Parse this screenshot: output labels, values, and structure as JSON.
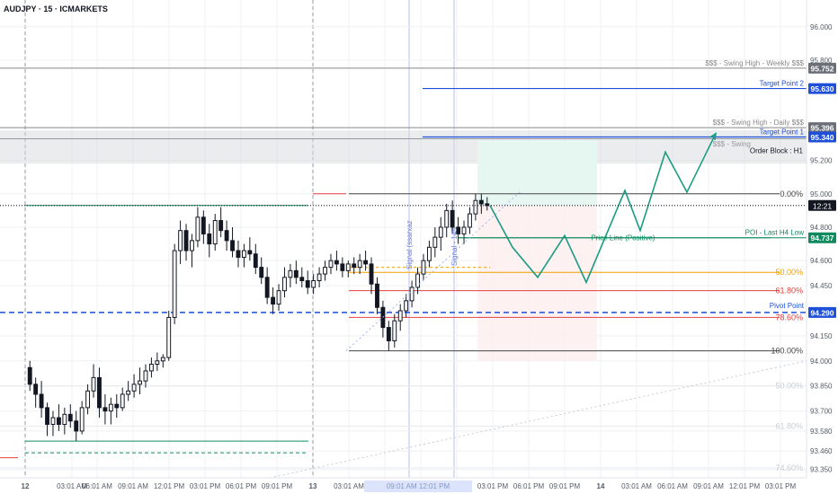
{
  "header": {
    "symbol_label": "AUDJPY · 15 · ICMARKETS"
  },
  "chart_data": {
    "type": "candlestick",
    "symbol": "AUDJPY",
    "timeframe": "15",
    "broker": "ICMARKETS",
    "ylim": [
      93.3,
      96.16
    ],
    "price_ticks": [
      "96.000",
      "95.800",
      "95.200",
      "95.000",
      "94.800",
      "94.600",
      "94.450",
      "94.150",
      "94.000",
      "93.850",
      "93.700",
      "93.580",
      "93.460",
      "93.350"
    ],
    "time_ticks": [
      "12",
      "03:01 AM",
      "06:01 AM",
      "09:01 AM",
      "12:01 PM",
      "03:01 PM",
      "06:01 PM",
      "09:01 PM",
      "13",
      "03:01 AM",
      "06:01 AM",
      "09:01 AM",
      "12:01 PM",
      "03:01 PM",
      "06:01 PM",
      "09:01 PM",
      "14",
      "03:01 AM",
      "06:01 AM",
      "09:01 AM",
      "12:01 PM",
      "03:01 PM"
    ],
    "current_price": {
      "value": "94.920",
      "countdown": "12:21"
    },
    "levels": [
      {
        "name": "swing-high-weekly",
        "label": "$$$ - Swing High - Weekly $$$",
        "price": 95.752,
        "tag": "95.752",
        "color": "#888888"
      },
      {
        "name": "target-point-2",
        "label": "Target Point 2",
        "price": 95.63,
        "tag": "95.630",
        "color": "#1e4fd8"
      },
      {
        "name": "swing-high-daily",
        "label": "$$$ - Swing High - Daily $$$",
        "price": 95.396,
        "tag": "95.396",
        "color": "#888888"
      },
      {
        "name": "target-point-1",
        "label": "Target Point 1",
        "price": 95.34,
        "tag": "95.340",
        "color": "#1e4fd8"
      },
      {
        "name": "poi-last-h4-low",
        "label": "POI - Last H4 Low",
        "price": 94.737,
        "tag": "94.737",
        "color": "#0f8a5f"
      },
      {
        "name": "pivot-point",
        "label": "Pivot Point",
        "price": 94.29,
        "tag": "94.290",
        "color": "#1e4fd8"
      }
    ],
    "fib_levels": [
      {
        "label": "0.00%",
        "price": 95.0,
        "color": "#444444"
      },
      {
        "label": "50.00%",
        "price": 94.53,
        "color": "#f0a000"
      },
      {
        "label": "61.80%",
        "price": 94.42,
        "color": "#e04040"
      },
      {
        "label": "78.60%",
        "price": 94.26,
        "color": "#e04040"
      },
      {
        "label": "100.00%",
        "price": 94.06,
        "color": "#444444"
      }
    ],
    "fib_ghost_levels": [
      {
        "label": "50.00%",
        "price": 93.85
      },
      {
        "label": "61.80%",
        "price": 93.61
      },
      {
        "label": "74.60%",
        "price": 93.36
      }
    ],
    "annotations": {
      "order_block": "Order Block : H1",
      "swing_high_daily_faded": "$$$ - Swing",
      "price_line": "Price Line (Positive)",
      "signal_1": "Signal (ssarxaz",
      "signal_2": "Signal - 145",
      "time_badge": "09:01 AM  12:01 PM"
    },
    "projection": [
      [
        94.93,
        94.68
      ],
      [
        94.82,
        94.55
      ],
      [
        94.72,
        94.5
      ],
      [
        94.92,
        95.02
      ],
      [
        94.8,
        95.25
      ],
      [
        95.03,
        95.36
      ]
    ],
    "candles": [
      [
        93.96,
        94.0,
        93.82,
        93.86
      ],
      [
        93.86,
        93.9,
        93.72,
        93.8
      ],
      [
        93.8,
        93.88,
        93.66,
        93.72
      ],
      [
        93.72,
        93.75,
        93.55,
        93.62
      ],
      [
        93.62,
        93.7,
        93.55,
        93.66
      ],
      [
        93.66,
        93.74,
        93.58,
        93.62
      ],
      [
        93.62,
        93.72,
        93.56,
        93.68
      ],
      [
        93.68,
        93.74,
        93.6,
        93.64
      ],
      [
        93.64,
        93.7,
        93.52,
        93.58
      ],
      [
        93.58,
        93.76,
        93.56,
        93.72
      ],
      [
        93.72,
        93.86,
        93.68,
        93.82
      ],
      [
        93.82,
        93.98,
        93.78,
        93.9
      ],
      [
        93.9,
        93.96,
        93.66,
        93.72
      ],
      [
        93.72,
        93.8,
        93.62,
        93.7
      ],
      [
        93.7,
        93.78,
        93.62,
        93.74
      ],
      [
        93.74,
        93.8,
        93.66,
        93.72
      ],
      [
        93.72,
        93.84,
        93.7,
        93.8
      ],
      [
        93.8,
        93.88,
        93.76,
        93.82
      ],
      [
        93.82,
        93.92,
        93.78,
        93.86
      ],
      [
        93.86,
        93.96,
        93.8,
        93.88
      ],
      [
        93.88,
        93.98,
        93.84,
        93.94
      ],
      [
        93.94,
        94.02,
        93.9,
        93.98
      ],
      [
        93.98,
        94.05,
        93.94,
        94.0
      ],
      [
        94.0,
        94.04,
        93.96,
        94.02
      ],
      [
        94.02,
        94.3,
        94.0,
        94.26
      ],
      [
        94.26,
        94.7,
        94.22,
        94.66
      ],
      [
        94.66,
        94.84,
        94.58,
        94.78
      ],
      [
        94.78,
        94.82,
        94.6,
        94.66
      ],
      [
        94.66,
        94.76,
        94.56,
        94.72
      ],
      [
        94.72,
        94.92,
        94.68,
        94.86
      ],
      [
        94.86,
        94.9,
        94.7,
        94.76
      ],
      [
        94.76,
        94.82,
        94.62,
        94.7
      ],
      [
        94.7,
        94.88,
        94.66,
        94.84
      ],
      [
        94.84,
        94.92,
        94.74,
        94.78
      ],
      [
        94.78,
        94.84,
        94.66,
        94.72
      ],
      [
        94.72,
        94.8,
        94.62,
        94.66
      ],
      [
        94.66,
        94.72,
        94.56,
        94.62
      ],
      [
        94.62,
        94.7,
        94.56,
        94.66
      ],
      [
        94.66,
        94.74,
        94.6,
        94.64
      ],
      [
        94.64,
        94.7,
        94.52,
        94.56
      ],
      [
        94.56,
        94.62,
        94.46,
        94.5
      ],
      [
        94.5,
        94.56,
        94.34,
        94.38
      ],
      [
        94.38,
        94.44,
        94.28,
        94.34
      ],
      [
        94.34,
        94.46,
        94.3,
        94.42
      ],
      [
        94.42,
        94.56,
        94.38,
        94.5
      ],
      [
        94.5,
        94.58,
        94.44,
        94.54
      ],
      [
        94.54,
        94.6,
        94.46,
        94.5
      ],
      [
        94.5,
        94.56,
        94.44,
        94.48
      ],
      [
        94.48,
        94.54,
        94.4,
        94.44
      ],
      [
        94.44,
        94.52,
        94.4,
        94.48
      ],
      [
        94.48,
        94.56,
        94.44,
        94.52
      ],
      [
        94.52,
        94.6,
        94.48,
        94.56
      ],
      [
        94.56,
        94.64,
        94.52,
        94.6
      ],
      [
        94.6,
        94.66,
        94.54,
        94.58
      ],
      [
        94.58,
        94.62,
        94.5,
        94.54
      ],
      [
        94.54,
        94.6,
        94.5,
        94.58
      ],
      [
        94.58,
        94.62,
        94.52,
        94.56
      ],
      [
        94.56,
        94.64,
        94.52,
        94.6
      ],
      [
        94.6,
        94.66,
        94.54,
        94.58
      ],
      [
        94.58,
        94.62,
        94.4,
        94.46
      ],
      [
        94.46,
        94.5,
        94.28,
        94.32
      ],
      [
        94.32,
        94.36,
        94.14,
        94.2
      ],
      [
        94.2,
        94.24,
        94.06,
        94.12
      ],
      [
        94.12,
        94.28,
        94.08,
        94.24
      ],
      [
        94.24,
        94.34,
        94.18,
        94.3
      ],
      [
        94.3,
        94.4,
        94.26,
        94.36
      ],
      [
        94.36,
        94.48,
        94.32,
        94.44
      ],
      [
        94.44,
        94.56,
        94.4,
        94.52
      ],
      [
        94.52,
        94.64,
        94.48,
        94.6
      ],
      [
        94.6,
        94.72,
        94.56,
        94.68
      ],
      [
        94.68,
        94.8,
        94.62,
        94.74
      ],
      [
        94.74,
        94.86,
        94.66,
        94.8
      ],
      [
        94.8,
        94.94,
        94.74,
        94.9
      ],
      [
        94.9,
        94.96,
        94.76,
        94.8
      ],
      [
        94.8,
        94.86,
        94.7,
        94.76
      ],
      [
        94.76,
        94.84,
        94.7,
        94.8
      ],
      [
        94.8,
        94.92,
        94.76,
        94.88
      ],
      [
        94.88,
        95.0,
        94.84,
        94.96
      ],
      [
        94.96,
        95.0,
        94.88,
        94.94
      ],
      [
        94.94,
        94.98,
        94.9,
        94.93
      ]
    ]
  }
}
